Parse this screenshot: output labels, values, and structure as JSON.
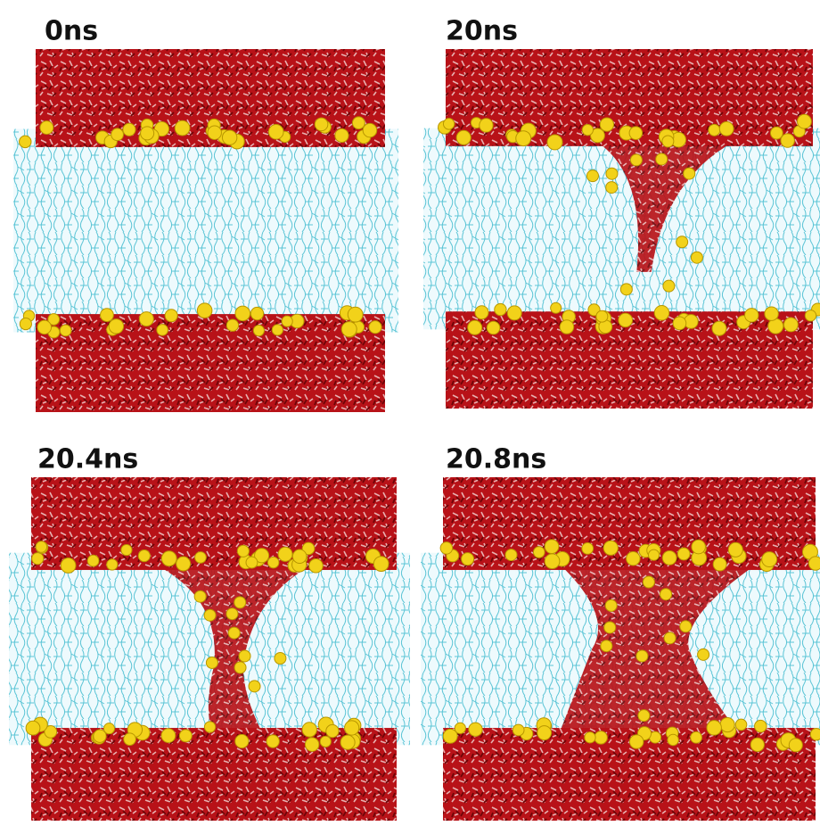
{
  "panels": [
    {
      "label": "0ns"
    },
    {
      "label": "20ns"
    },
    {
      "label": "20.4ns"
    },
    {
      "label": "20.8ns"
    }
  ]
}
